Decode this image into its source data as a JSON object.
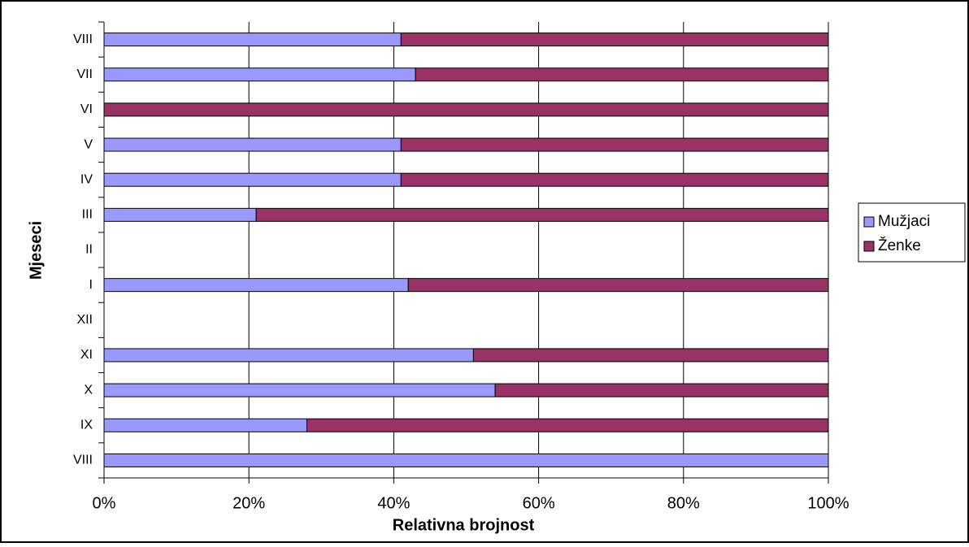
{
  "chart_data": {
    "type": "stacked-barh",
    "xlabel": "Relativna brojnost",
    "ylabel": "Mjeseci",
    "categories": [
      "VIII",
      "IX",
      "X",
      "XI",
      "XII",
      "I",
      "II",
      "III",
      "IV",
      "V",
      "VI",
      "VII",
      "VIII"
    ],
    "series": [
      {
        "name": "Mužjaci",
        "color": "#9999ff",
        "values": [
          100,
          28,
          54,
          51,
          null,
          42,
          null,
          21,
          41,
          41,
          0,
          43,
          41
        ]
      },
      {
        "name": "Ženke",
        "color": "#993366",
        "values": [
          0,
          72,
          46,
          49,
          null,
          58,
          null,
          79,
          59,
          59,
          100,
          57,
          59
        ]
      }
    ],
    "xlim": [
      0,
      100
    ],
    "xticks": [
      {
        "value": 0,
        "label": "0%"
      },
      {
        "value": 20,
        "label": "20%"
      },
      {
        "value": 40,
        "label": "40%"
      },
      {
        "value": 60,
        "label": "60%"
      },
      {
        "value": 80,
        "label": "80%"
      },
      {
        "value": 100,
        "label": "100%"
      }
    ],
    "grid": true,
    "legend": "right"
  }
}
